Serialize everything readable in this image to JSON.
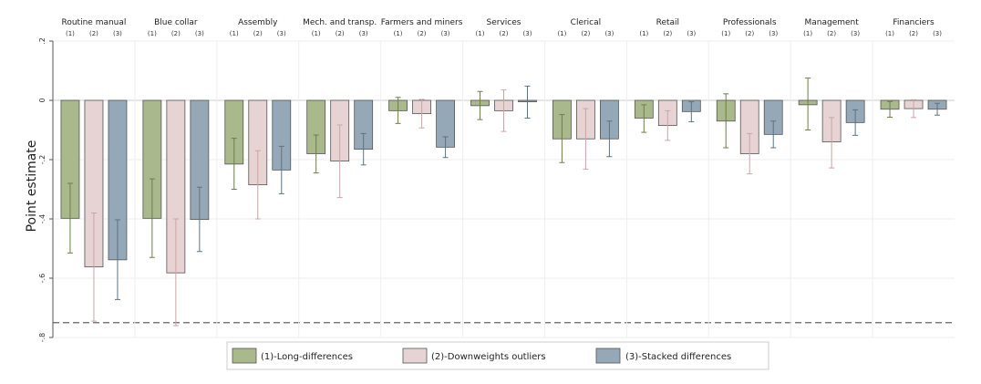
{
  "chart_data": {
    "type": "bar",
    "ylabel": "Point estimate",
    "ylim": [
      -0.8,
      0.2
    ],
    "yticks": [
      -0.8,
      -0.6,
      -0.4,
      -0.2,
      0,
      0.2
    ],
    "ytick_labels": [
      "-.8",
      "-.6",
      "-.4",
      "-.2",
      "0",
      ".2"
    ],
    "reference_line": -0.75,
    "grid": true,
    "legend_position": "bottom",
    "categories": [
      "Routine manual",
      "Blue collar",
      "Assembly",
      "Mech. and transp.",
      "Farmers and miners",
      "Services",
      "Clerical",
      "Retail",
      "Professionals",
      "Management",
      "Financiers"
    ],
    "spec_labels": [
      "(1)",
      "(2)",
      "(3)"
    ],
    "colors": [
      "#a9b98b",
      "#e7d3d3",
      "#95a8b8"
    ],
    "error_colors": [
      "#6e7d4a",
      "#c9a5a5",
      "#5a7386"
    ],
    "series": [
      {
        "name": "(1)-Long-differences",
        "values": [
          -0.398,
          -0.398,
          -0.215,
          -0.18,
          -0.035,
          -0.018,
          -0.13,
          -0.06,
          -0.07,
          -0.015,
          -0.03
        ],
        "ci_low": [
          -0.515,
          -0.53,
          -0.3,
          -0.245,
          -0.078,
          -0.065,
          -0.21,
          -0.108,
          -0.16,
          -0.1,
          -0.057
        ],
        "ci_high": [
          -0.28,
          -0.265,
          -0.128,
          -0.117,
          0.01,
          0.03,
          -0.048,
          -0.015,
          0.022,
          0.075,
          -0.004
        ]
      },
      {
        "name": "(2)-Downweights outliers",
        "values": [
          -0.562,
          -0.582,
          -0.285,
          -0.205,
          -0.045,
          -0.035,
          -0.13,
          -0.085,
          -0.18,
          -0.14,
          -0.028
        ],
        "ci_low": [
          -0.745,
          -0.76,
          -0.4,
          -0.328,
          -0.093,
          -0.105,
          -0.232,
          -0.135,
          -0.248,
          -0.228,
          -0.058
        ],
        "ci_high": [
          -0.38,
          -0.4,
          -0.17,
          -0.083,
          0.003,
          0.035,
          -0.028,
          -0.035,
          -0.112,
          -0.058,
          0.002
        ]
      },
      {
        "name": "(3)-Stacked differences",
        "values": [
          -0.538,
          -0.402,
          -0.235,
          -0.165,
          -0.158,
          -0.005,
          -0.13,
          -0.038,
          -0.115,
          -0.075,
          -0.03
        ],
        "ci_low": [
          -0.672,
          -0.51,
          -0.315,
          -0.218,
          -0.193,
          -0.06,
          -0.19,
          -0.072,
          -0.16,
          -0.118,
          -0.05
        ],
        "ci_high": [
          -0.403,
          -0.293,
          -0.155,
          -0.112,
          -0.123,
          0.048,
          -0.07,
          -0.005,
          -0.07,
          -0.032,
          -0.01
        ]
      }
    ]
  }
}
